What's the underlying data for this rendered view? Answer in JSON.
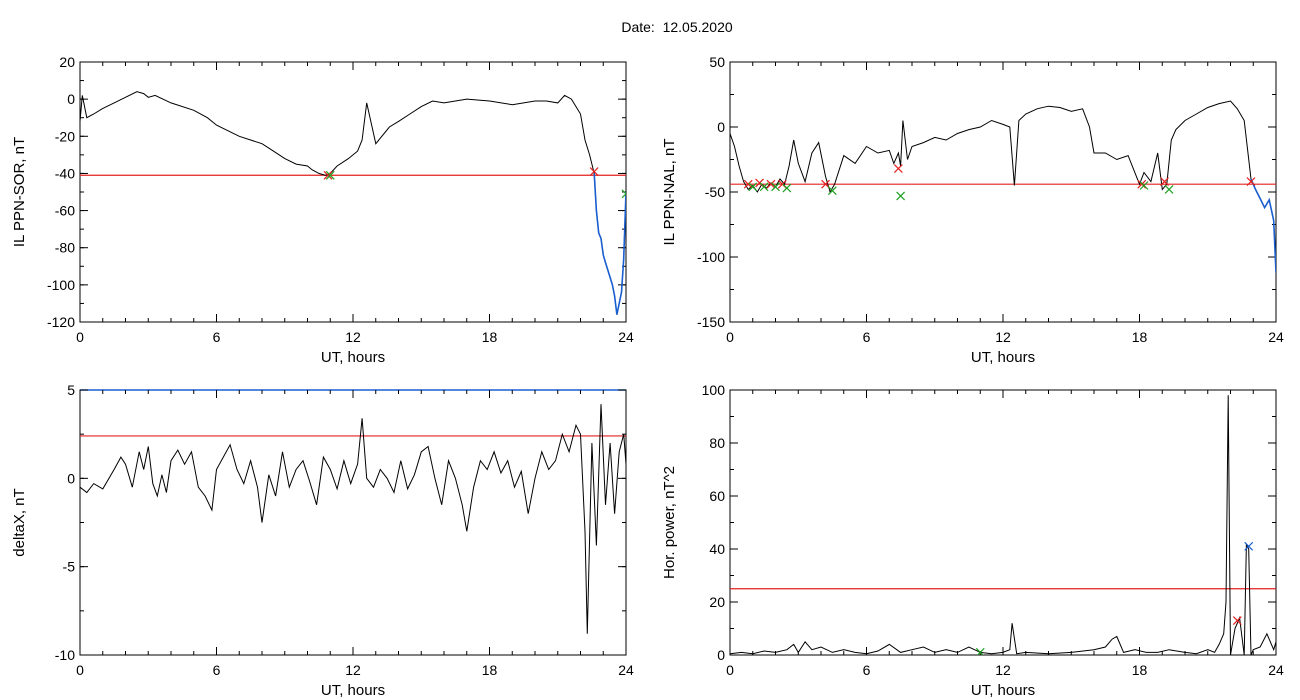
{
  "figure": {
    "title": "Date:  12.05.2020"
  },
  "chart_data": [
    {
      "type": "line",
      "ylabel": "IL PPN-SOR, nT",
      "xlabel": "UT, hours",
      "xlim": [
        0,
        24
      ],
      "ylim": [
        -120,
        20
      ],
      "xticks": [
        0,
        6,
        12,
        18,
        24
      ],
      "yticks": [
        -120,
        -100,
        -80,
        -60,
        -40,
        -20,
        0,
        20
      ],
      "threshold": -41,
      "colors": {
        "line": "#000000",
        "highlight": "#1a5fd0",
        "threshold": "#e32020"
      },
      "highlight_x_from": 22.6,
      "series": [
        {
          "x": [
            0,
            0.1,
            0.3,
            0.6,
            1.0,
            1.5,
            2.0,
            2.5,
            2.8,
            3.0,
            3.3,
            4.0,
            5.0,
            5.6,
            6.0,
            7.0,
            7.5,
            8.0,
            8.5,
            9.0,
            9.5,
            10.0,
            10.2,
            10.5,
            10.8,
            11.0,
            11.3,
            11.8,
            12.2,
            12.4,
            12.6,
            13.0,
            13.6,
            14.0,
            14.5,
            15.0,
            15.5,
            16.0,
            17.0,
            18.0,
            19.0,
            20.0,
            20.5,
            21.0,
            21.3,
            21.6,
            21.8,
            22.0,
            22.2,
            22.4,
            22.6,
            22.7,
            22.8,
            22.9,
            23.0,
            23.1,
            23.2,
            23.3,
            23.4,
            23.5,
            23.6,
            23.7,
            23.8,
            23.9,
            24.0
          ],
          "y": [
            -12,
            2,
            -10,
            -8,
            -5,
            -2,
            1,
            4,
            3,
            1,
            2,
            -2,
            -6,
            -10,
            -14,
            -20,
            -22,
            -24,
            -28,
            -32,
            -35,
            -36,
            -38,
            -40,
            -41,
            -40,
            -36,
            -32,
            -28,
            -22,
            -2,
            -24,
            -15,
            -12,
            -8,
            -4,
            -1,
            -2,
            0,
            -1,
            -3,
            -1,
            -1,
            -2,
            2,
            0,
            -4,
            -8,
            -22,
            -30,
            -40,
            -60,
            -72,
            -75,
            -84,
            -88,
            -92,
            -96,
            -100,
            -106,
            -116,
            -110,
            -104,
            -86,
            -50
          ]
        }
      ],
      "markers": [
        {
          "x": 10.9,
          "y": -41,
          "color": "#e32020"
        },
        {
          "x": 11.0,
          "y": -41,
          "color": "#20a020"
        },
        {
          "x": 22.6,
          "y": -39,
          "color": "#e32020"
        },
        {
          "x": 24.0,
          "y": -51,
          "color": "#20a020"
        }
      ]
    },
    {
      "type": "line",
      "ylabel": "IL PPN-NAL, nT",
      "xlabel": "UT, hours",
      "xlim": [
        0,
        24
      ],
      "ylim": [
        -150,
        50
      ],
      "xticks": [
        0,
        6,
        12,
        18,
        24
      ],
      "yticks": [
        -150,
        -100,
        -50,
        0,
        50
      ],
      "threshold": -44,
      "colors": {
        "line": "#000000",
        "highlight": "#1a5fd0",
        "threshold": "#e32020"
      },
      "highlight_x_from": 22.9,
      "series": [
        {
          "x": [
            0,
            0.2,
            0.4,
            0.6,
            0.8,
            1.0,
            1.2,
            1.4,
            1.6,
            1.8,
            2.0,
            2.2,
            2.4,
            2.6,
            2.8,
            3.0,
            3.3,
            3.6,
            3.9,
            4.2,
            4.4,
            4.6,
            5.0,
            5.5,
            6.0,
            6.5,
            7.0,
            7.2,
            7.4,
            7.5,
            7.6,
            7.8,
            8.0,
            8.5,
            9.0,
            9.5,
            10.0,
            10.5,
            11.0,
            11.5,
            12.0,
            12.3,
            12.5,
            12.7,
            13.0,
            13.5,
            14.0,
            14.5,
            15.0,
            15.5,
            15.8,
            16.0,
            16.5,
            17.0,
            17.5,
            18.0,
            18.2,
            18.5,
            18.8,
            19.0,
            19.2,
            19.4,
            19.6,
            20.0,
            20.5,
            21.0,
            21.5,
            22.0,
            22.3,
            22.6,
            22.9,
            23.1,
            23.3,
            23.5,
            23.7,
            23.9,
            24.0
          ],
          "y": [
            -5,
            -15,
            -30,
            -42,
            -48,
            -45,
            -50,
            -44,
            -47,
            -43,
            -46,
            -40,
            -44,
            -30,
            -10,
            -28,
            -42,
            -20,
            -12,
            -38,
            -50,
            -44,
            -22,
            -28,
            -15,
            -20,
            -18,
            -28,
            -20,
            -30,
            5,
            -25,
            -15,
            -12,
            -8,
            -10,
            -5,
            -2,
            0,
            5,
            2,
            0,
            -45,
            5,
            10,
            14,
            16,
            15,
            12,
            14,
            0,
            -20,
            -20,
            -25,
            -22,
            -44,
            -35,
            -42,
            -20,
            -48,
            -44,
            -10,
            -2,
            5,
            10,
            15,
            18,
            20,
            14,
            5,
            -40,
            -48,
            -55,
            -62,
            -56,
            -72,
            -112
          ]
        }
      ],
      "markers": [
        {
          "x": 0.8,
          "y": -44,
          "color": "#e32020"
        },
        {
          "x": 1.0,
          "y": -46,
          "color": "#20a020"
        },
        {
          "x": 1.3,
          "y": -43,
          "color": "#e32020"
        },
        {
          "x": 1.5,
          "y": -46,
          "color": "#20a020"
        },
        {
          "x": 1.8,
          "y": -44,
          "color": "#e32020"
        },
        {
          "x": 2.0,
          "y": -46,
          "color": "#20a020"
        },
        {
          "x": 2.3,
          "y": -44,
          "color": "#e32020"
        },
        {
          "x": 2.5,
          "y": -47,
          "color": "#20a020"
        },
        {
          "x": 4.2,
          "y": -44,
          "color": "#e32020"
        },
        {
          "x": 4.5,
          "y": -49,
          "color": "#20a020"
        },
        {
          "x": 7.4,
          "y": -32,
          "color": "#e32020"
        },
        {
          "x": 7.5,
          "y": -53,
          "color": "#20a020"
        },
        {
          "x": 18.1,
          "y": -44,
          "color": "#e32020"
        },
        {
          "x": 18.2,
          "y": -45,
          "color": "#20a020"
        },
        {
          "x": 19.1,
          "y": -42,
          "color": "#e32020"
        },
        {
          "x": 19.3,
          "y": -48,
          "color": "#20a020"
        },
        {
          "x": 22.9,
          "y": -42,
          "color": "#e32020"
        }
      ]
    },
    {
      "type": "line",
      "ylabel": "deltaX, nT",
      "xlabel": "UT, hours",
      "xlim": [
        0,
        24
      ],
      "ylim": [
        -10,
        5
      ],
      "xticks": [
        0,
        6,
        12,
        18,
        24
      ],
      "yticks": [
        -10,
        -5,
        0,
        5
      ],
      "threshold": 2.4,
      "colors": {
        "line": "#000000",
        "threshold": "#e32020",
        "top_frame": "#1a5fd0"
      },
      "series": [
        {
          "x": [
            0,
            0.3,
            0.6,
            1.0,
            1.5,
            1.8,
            2.0,
            2.3,
            2.6,
            2.8,
            3.0,
            3.2,
            3.4,
            3.6,
            3.8,
            4.0,
            4.3,
            4.6,
            4.9,
            5.2,
            5.5,
            5.8,
            6.0,
            6.3,
            6.6,
            6.9,
            7.2,
            7.5,
            7.8,
            8.0,
            8.3,
            8.6,
            8.9,
            9.2,
            9.5,
            9.8,
            10.1,
            10.4,
            10.7,
            11.0,
            11.3,
            11.6,
            11.9,
            12.2,
            12.4,
            12.6,
            12.9,
            13.2,
            13.5,
            13.8,
            14.1,
            14.4,
            14.7,
            15.0,
            15.3,
            15.6,
            15.9,
            16.2,
            16.5,
            16.8,
            17.0,
            17.3,
            17.6,
            17.9,
            18.2,
            18.5,
            18.8,
            19.1,
            19.4,
            19.7,
            20.0,
            20.3,
            20.6,
            20.9,
            21.2,
            21.5,
            21.8,
            22.0,
            22.2,
            22.3,
            22.5,
            22.7,
            22.9,
            23.1,
            23.3,
            23.5,
            23.7,
            23.9,
            24.0
          ],
          "y": [
            -0.5,
            -0.8,
            -0.3,
            -0.6,
            0.5,
            1.2,
            0.8,
            -0.5,
            1.5,
            0.5,
            1.8,
            -0.3,
            -1.0,
            0.2,
            -0.8,
            1.0,
            1.6,
            0.8,
            1.5,
            -0.5,
            -1.0,
            -1.8,
            0.5,
            1.2,
            1.9,
            0.5,
            -0.3,
            1.0,
            -0.5,
            -2.5,
            0.2,
            -1.0,
            1.5,
            -0.5,
            0.5,
            1.0,
            -0.2,
            -1.5,
            1.2,
            0.5,
            -0.6,
            1.0,
            -0.3,
            0.8,
            3.4,
            0.0,
            -0.5,
            0.5,
            0.0,
            -0.8,
            1.0,
            -0.6,
            0.2,
            1.5,
            1.8,
            0.0,
            -1.5,
            1.0,
            0.0,
            -1.5,
            -3.0,
            -0.5,
            1.0,
            0.5,
            1.5,
            0.3,
            1.0,
            -0.5,
            0.4,
            -2.0,
            0.0,
            1.5,
            0.5,
            1.0,
            2.5,
            1.5,
            3.0,
            2.5,
            -3.0,
            -8.8,
            2.0,
            -3.8,
            4.2,
            -1.5,
            2.0,
            -2.0,
            1.5,
            2.5,
            0.8
          ]
        }
      ],
      "markers": []
    },
    {
      "type": "line",
      "ylabel": "Hor. power, nT^2",
      "xlabel": "UT, hours",
      "xlim": [
        0,
        24
      ],
      "ylim": [
        0,
        100
      ],
      "xticks": [
        0,
        6,
        12,
        18,
        24
      ],
      "yticks": [
        0,
        20,
        40,
        60,
        80,
        100
      ],
      "threshold": 25,
      "colors": {
        "line": "#000000",
        "threshold": "#e32020"
      },
      "series": [
        {
          "x": [
            0,
            0.5,
            1.0,
            1.5,
            2.0,
            2.5,
            2.8,
            3.0,
            3.3,
            3.6,
            4.0,
            4.5,
            5.0,
            5.5,
            6.0,
            6.5,
            7.0,
            7.5,
            8.0,
            8.5,
            9.0,
            9.5,
            10.0,
            10.5,
            11.0,
            11.5,
            12.0,
            12.3,
            12.4,
            12.6,
            13.0,
            14.0,
            15.0,
            16.0,
            16.5,
            16.8,
            17.0,
            17.3,
            17.8,
            18.3,
            18.8,
            19.3,
            20.0,
            20.5,
            21.0,
            21.3,
            21.5,
            21.7,
            21.8,
            21.9,
            22.0,
            22.2,
            22.4,
            22.6,
            22.7,
            22.8,
            22.9,
            23.0,
            23.3,
            23.6,
            23.9,
            24.0
          ],
          "y": [
            0.5,
            1.0,
            0.5,
            1.5,
            1.0,
            2.0,
            4.0,
            1.0,
            5.0,
            2.0,
            3.0,
            1.0,
            2.0,
            1.0,
            0.5,
            1.5,
            4.0,
            1.0,
            2.0,
            3.0,
            1.0,
            2.0,
            1.0,
            3.0,
            1.0,
            0.5,
            1.0,
            2.0,
            12.0,
            0.5,
            1.0,
            0.5,
            1.0,
            2.0,
            3.0,
            6.0,
            7.0,
            1.0,
            2.0,
            1.0,
            1.0,
            2.0,
            1.0,
            0.5,
            2.0,
            1.0,
            4.0,
            8.0,
            20.0,
            98.0,
            0.0,
            10.0,
            14.0,
            0.0,
            42.0,
            40.0,
            0.0,
            2.0,
            3.0,
            8.0,
            2.0,
            5.0
          ]
        }
      ],
      "markers": [
        {
          "x": 11.0,
          "y": 1,
          "color": "#20a020"
        },
        {
          "x": 22.3,
          "y": 13,
          "color": "#e32020"
        },
        {
          "x": 22.8,
          "y": 41,
          "color": "#1a5fd0"
        }
      ]
    }
  ]
}
